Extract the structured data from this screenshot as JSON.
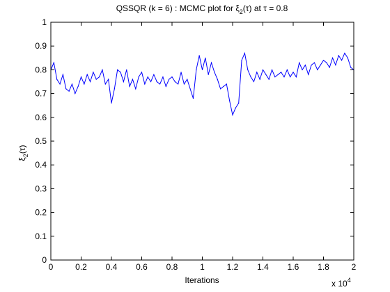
{
  "chart_data": {
    "type": "line",
    "title": "QSSQR (k = 6) : MCMC plot for ξ2(τ) at τ = 0.8",
    "title_parts": {
      "prefix": "QSSQR (k = 6) : MCMC plot for ",
      "symbol": "ξ",
      "subscript": "2",
      "suffix_a": "(",
      "tau1": "τ",
      "suffix_b": ") at ",
      "tau2": "τ",
      "suffix_c": " = 0.8"
    },
    "xlabel": "Iterations",
    "ylabel": "ξ2(τ)",
    "ylabel_parts": {
      "symbol": "ξ",
      "subscript": "2",
      "open": "(",
      "tau": "τ",
      "close": ")"
    },
    "x_multiplier": {
      "base": "x 10",
      "exponent": "4"
    },
    "xlim": [
      0,
      2
    ],
    "ylim": [
      0,
      1
    ],
    "x_ticks": [
      "0",
      "0.2",
      "0.4",
      "0.6",
      "0.8",
      "1",
      "1.2",
      "1.4",
      "1.6",
      "1.8",
      "2"
    ],
    "y_ticks": [
      "0",
      "0.1",
      "0.2",
      "0.3",
      "0.4",
      "0.5",
      "0.6",
      "0.7",
      "0.8",
      "0.9",
      "1"
    ],
    "grid": false,
    "series": [
      {
        "color": "#0000ff",
        "x": [
          0,
          0.02,
          0.04,
          0.06,
          0.08,
          0.1,
          0.12,
          0.14,
          0.16,
          0.18,
          0.2,
          0.22,
          0.24,
          0.26,
          0.28,
          0.3,
          0.32,
          0.34,
          0.36,
          0.38,
          0.4,
          0.42,
          0.44,
          0.46,
          0.48,
          0.5,
          0.52,
          0.54,
          0.56,
          0.58,
          0.6,
          0.62,
          0.64,
          0.66,
          0.68,
          0.7,
          0.72,
          0.74,
          0.76,
          0.78,
          0.8,
          0.82,
          0.84,
          0.86,
          0.88,
          0.9,
          0.92,
          0.94,
          0.96,
          0.98,
          1,
          1.02,
          1.04,
          1.06,
          1.08,
          1.1,
          1.12,
          1.14,
          1.16,
          1.18,
          1.2,
          1.22,
          1.24,
          1.26,
          1.28,
          1.3,
          1.32,
          1.34,
          1.36,
          1.38,
          1.4,
          1.42,
          1.44,
          1.46,
          1.48,
          1.5,
          1.52,
          1.54,
          1.56,
          1.58,
          1.6,
          1.62,
          1.64,
          1.66,
          1.68,
          1.7,
          1.72,
          1.74,
          1.76,
          1.78,
          1.8,
          1.82,
          1.84,
          1.86,
          1.88,
          1.9,
          1.92,
          1.94,
          1.96,
          1.98,
          2
        ],
        "y": [
          0.8,
          0.83,
          0.76,
          0.74,
          0.78,
          0.72,
          0.71,
          0.74,
          0.7,
          0.73,
          0.77,
          0.74,
          0.78,
          0.75,
          0.79,
          0.76,
          0.77,
          0.8,
          0.74,
          0.76,
          0.66,
          0.72,
          0.8,
          0.79,
          0.75,
          0.8,
          0.73,
          0.76,
          0.72,
          0.77,
          0.79,
          0.74,
          0.77,
          0.75,
          0.78,
          0.75,
          0.74,
          0.77,
          0.73,
          0.76,
          0.77,
          0.75,
          0.74,
          0.79,
          0.74,
          0.76,
          0.72,
          0.68,
          0.8,
          0.86,
          0.8,
          0.85,
          0.78,
          0.83,
          0.79,
          0.76,
          0.72,
          0.73,
          0.74,
          0.67,
          0.61,
          0.64,
          0.66,
          0.84,
          0.87,
          0.8,
          0.77,
          0.75,
          0.79,
          0.76,
          0.8,
          0.78,
          0.76,
          0.8,
          0.77,
          0.78,
          0.79,
          0.77,
          0.8,
          0.77,
          0.79,
          0.77,
          0.83,
          0.8,
          0.82,
          0.78,
          0.82,
          0.83,
          0.8,
          0.82,
          0.84,
          0.83,
          0.81,
          0.85,
          0.82,
          0.86,
          0.84,
          0.87,
          0.85,
          0.81,
          0.8
        ]
      }
    ]
  }
}
